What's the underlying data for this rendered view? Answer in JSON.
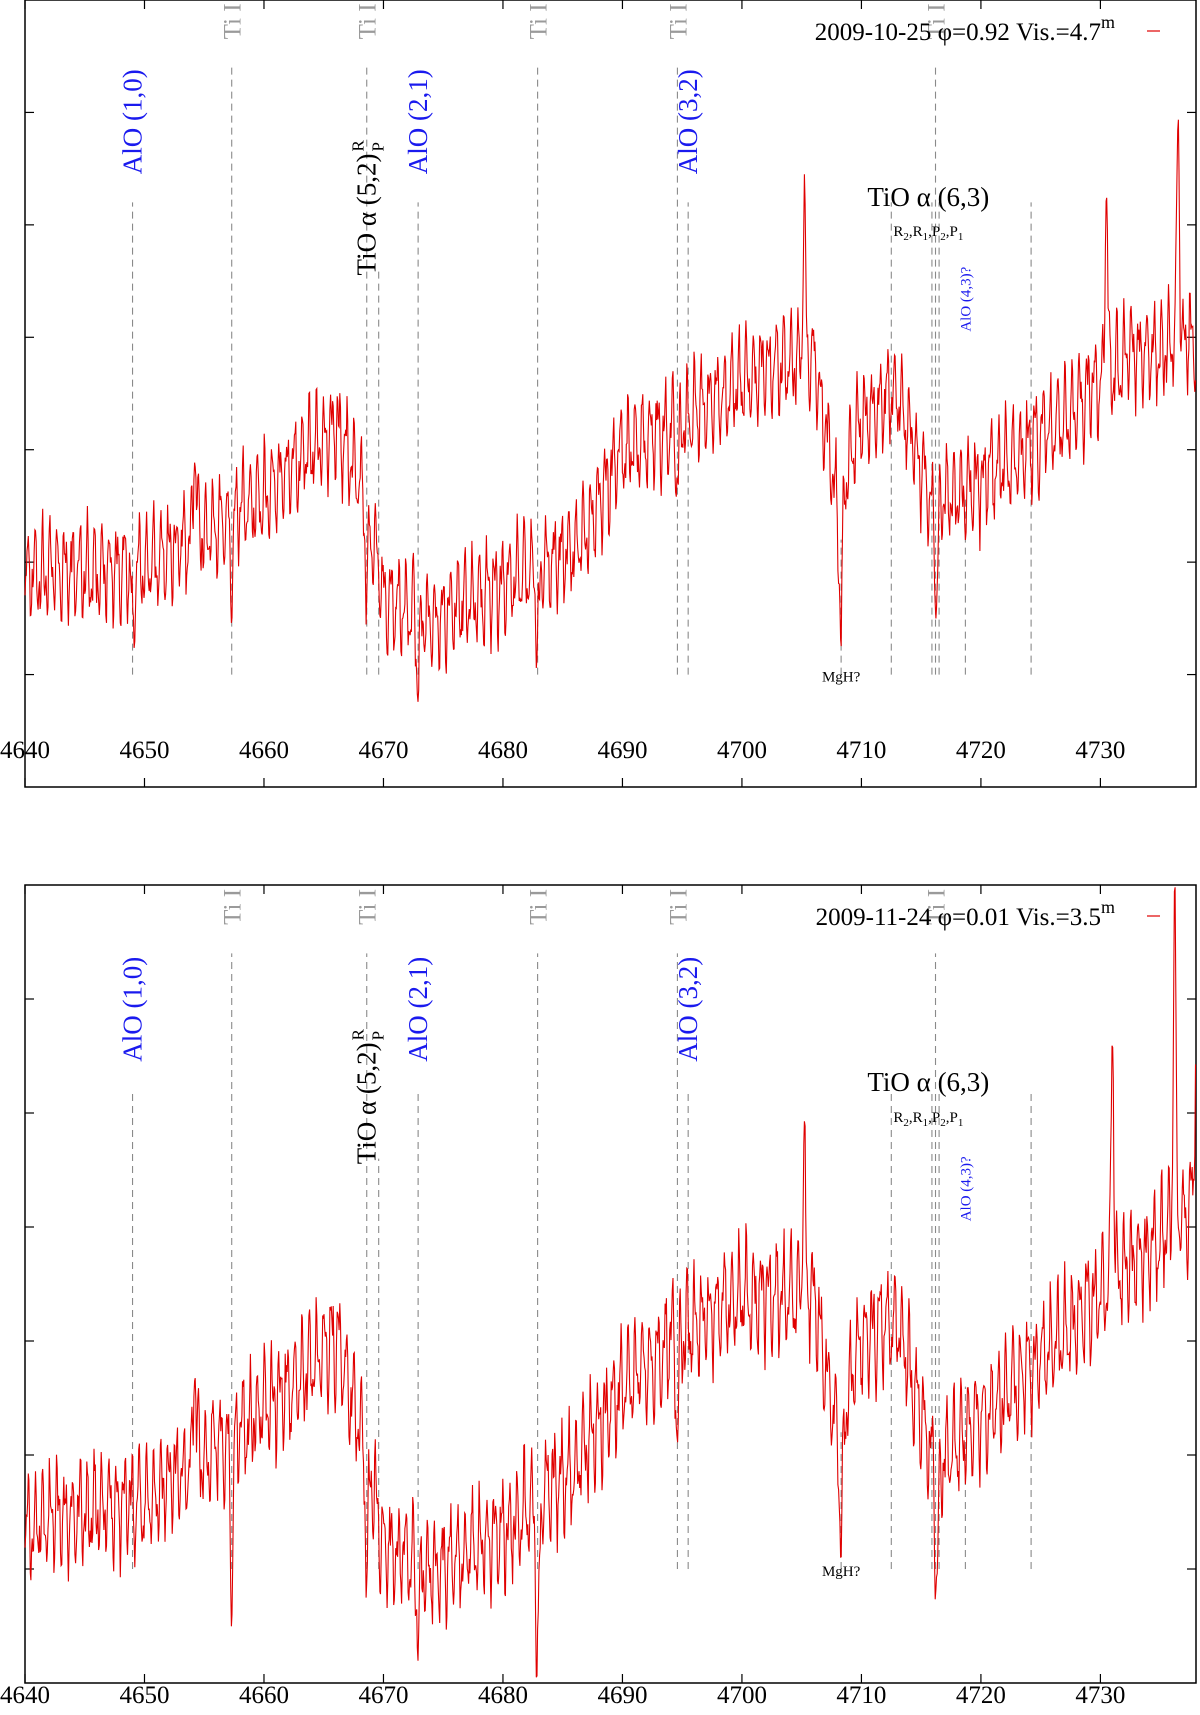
{
  "colors": {
    "spectrum": "#e00000",
    "marker": "#8a8a8a",
    "blue": "#1a1aee"
  },
  "chart_data": [
    {
      "type": "line",
      "title": "2009-10-25 φ=0.92 Vis.=4.7",
      "legend": {
        "text": "2009-10-25 φ=0.92 Vis.=4.7",
        "superscript": "m",
        "placement": "top-right"
      },
      "xlabel": "",
      "ylabel": "",
      "xlim": [
        4640,
        4738
      ],
      "ylim": [
        0,
        7
      ],
      "xticks": [
        "4640",
        "4650",
        "4660",
        "4670",
        "4680",
        "4690",
        "4700",
        "4710",
        "4720",
        "4730"
      ],
      "ytick_values": [
        1,
        2,
        3,
        4,
        5,
        6
      ],
      "trend": [
        [
          4640,
          1.9
        ],
        [
          4650,
          1.95
        ],
        [
          4660,
          2.6
        ],
        [
          4666,
          3.2
        ],
        [
          4668.5,
          2.6
        ],
        [
          4670,
          1.65
        ],
        [
          4674,
          1.5
        ],
        [
          4680,
          1.8
        ],
        [
          4686,
          2.1
        ],
        [
          4690,
          3.0
        ],
        [
          4694,
          3.2
        ],
        [
          4700,
          3.6
        ],
        [
          4706,
          3.85
        ],
        [
          4708,
          2.5
        ],
        [
          4710,
          3.3
        ],
        [
          4713,
          3.5
        ],
        [
          4716,
          2.5
        ],
        [
          4720,
          2.7
        ],
        [
          4726,
          3.2
        ],
        [
          4732,
          3.8
        ],
        [
          4738,
          4.0
        ]
      ],
      "amplitude": 0.55,
      "dips": [
        [
          4649,
          0.55
        ],
        [
          4657.3,
          0.6
        ],
        [
          4668.6,
          0.85
        ],
        [
          4672.9,
          0.6
        ],
        [
          4682.9,
          0.7
        ],
        [
          4694.6,
          0.5
        ],
        [
          4708.3,
          1.2
        ],
        [
          4716.3,
          0.9
        ]
      ],
      "peaks": [
        [
          4654.2,
          0.9
        ],
        [
          4705.2,
          1.4
        ],
        [
          4730.5,
          1.8
        ],
        [
          4736.5,
          2.0
        ]
      ]
    },
    {
      "type": "line",
      "title": "2009-11-24 φ=0.01 Vis.=3.5",
      "legend": {
        "text": "2009-11-24 φ=0.01 Vis.=3.5",
        "superscript": "m",
        "placement": "top-right"
      },
      "xlabel": "",
      "ylabel": "",
      "xlim": [
        4640,
        4738
      ],
      "ylim": [
        0,
        7
      ],
      "xticks": [
        "4640",
        "4650",
        "4660",
        "4670",
        "4680",
        "4690",
        "4700",
        "4710",
        "4720",
        "4730"
      ],
      "ytick_values": [
        1,
        2,
        3,
        4,
        5,
        6
      ],
      "trend": [
        [
          4640,
          1.4
        ],
        [
          4650,
          1.6
        ],
        [
          4660,
          2.4
        ],
        [
          4666,
          3.0
        ],
        [
          4668.5,
          2.1
        ],
        [
          4670,
          1.2
        ],
        [
          4674,
          1.0
        ],
        [
          4680,
          1.3
        ],
        [
          4686,
          1.9
        ],
        [
          4690,
          2.6
        ],
        [
          4694,
          3.0
        ],
        [
          4700,
          3.4
        ],
        [
          4706,
          3.4
        ],
        [
          4708,
          2.2
        ],
        [
          4710,
          3.0
        ],
        [
          4713,
          3.2
        ],
        [
          4716,
          1.9
        ],
        [
          4720,
          2.3
        ],
        [
          4726,
          3.0
        ],
        [
          4732,
          3.6
        ],
        [
          4738,
          4.2
        ]
      ],
      "amplitude": 0.6,
      "dips": [
        [
          4657.3,
          1.3
        ],
        [
          4668.6,
          1.1
        ],
        [
          4672.9,
          0.6
        ],
        [
          4682.9,
          1.5
        ],
        [
          4694.6,
          0.7
        ],
        [
          4708.3,
          1.2
        ],
        [
          4716.3,
          1.0
        ]
      ],
      "peaks": [
        [
          4654.2,
          1.0
        ],
        [
          4705.2,
          1.3
        ],
        [
          4731,
          2.4
        ],
        [
          4736.2,
          2.9
        ],
        [
          4738,
          1.5
        ]
      ]
    }
  ],
  "markers": [
    {
      "x": 4649.0,
      "style": "blue",
      "text": "AlO (1,0)",
      "from": 1.0,
      "to": 5.2,
      "label_y": 5.45
    },
    {
      "x": 4657.3,
      "style": "gray",
      "text": "Ti I",
      "from": 1.0,
      "to": 6.4,
      "label_y": 6.65
    },
    {
      "x": 4668.6,
      "style": "gray",
      "text": "Ti I",
      "from": 1.0,
      "to": 6.4,
      "label_y": 6.65
    },
    {
      "x": 4669.6,
      "style": "tio52",
      "text": "TiO α (5,2)",
      "sup": "R",
      "sub": "P",
      "from": 1.0,
      "to": 4.6,
      "label_y": 4.55
    },
    {
      "x": 4672.9,
      "style": "blue",
      "text": "AlO (2,1)",
      "from": 1.0,
      "to": 5.2,
      "label_y": 5.45
    },
    {
      "x": 4682.9,
      "style": "gray",
      "text": "Ti I",
      "from": 1.0,
      "to": 6.4,
      "label_y": 6.65
    },
    {
      "x": 4694.6,
      "style": "gray",
      "text": "Ti I",
      "from": 1.0,
      "to": 6.4,
      "label_y": 6.65
    },
    {
      "x": 4695.5,
      "style": "blue",
      "text": "AlO (3,2)",
      "from": 1.0,
      "to": 5.2,
      "label_y": 5.45
    },
    {
      "x": 4708.3,
      "style": "bottom",
      "text": "MgH?",
      "from": 1.0,
      "to": 2.2
    },
    {
      "x": 4712.5,
      "style": "none",
      "text": "",
      "from": 1.0,
      "to": 5.2
    },
    {
      "x": 4715.9,
      "style": "none",
      "text": "",
      "from": 1.0,
      "to": 5.2
    },
    {
      "x": 4716.2,
      "style": "gray",
      "text": "Ti I",
      "from": 1.0,
      "to": 6.4,
      "label_y": 6.65
    },
    {
      "x": 4716.5,
      "style": "none",
      "text": "",
      "from": 1.0,
      "to": 5.2
    },
    {
      "x": 4718.7,
      "style": "blue-small",
      "text": "AlO (4,3)?",
      "from": 1.0,
      "to": 2.6,
      "label_y": 4.05
    },
    {
      "x": 4724.2,
      "style": "none",
      "text": "",
      "from": 1.0,
      "to": 5.2
    }
  ],
  "tio63": {
    "text": "TiO α (6,3)",
    "branches": [
      {
        "letter": "R",
        "index": "2"
      },
      {
        "letter": "R",
        "index": "1"
      },
      {
        "letter": "P",
        "index": "2"
      },
      {
        "letter": "P",
        "index": "1"
      }
    ]
  }
}
